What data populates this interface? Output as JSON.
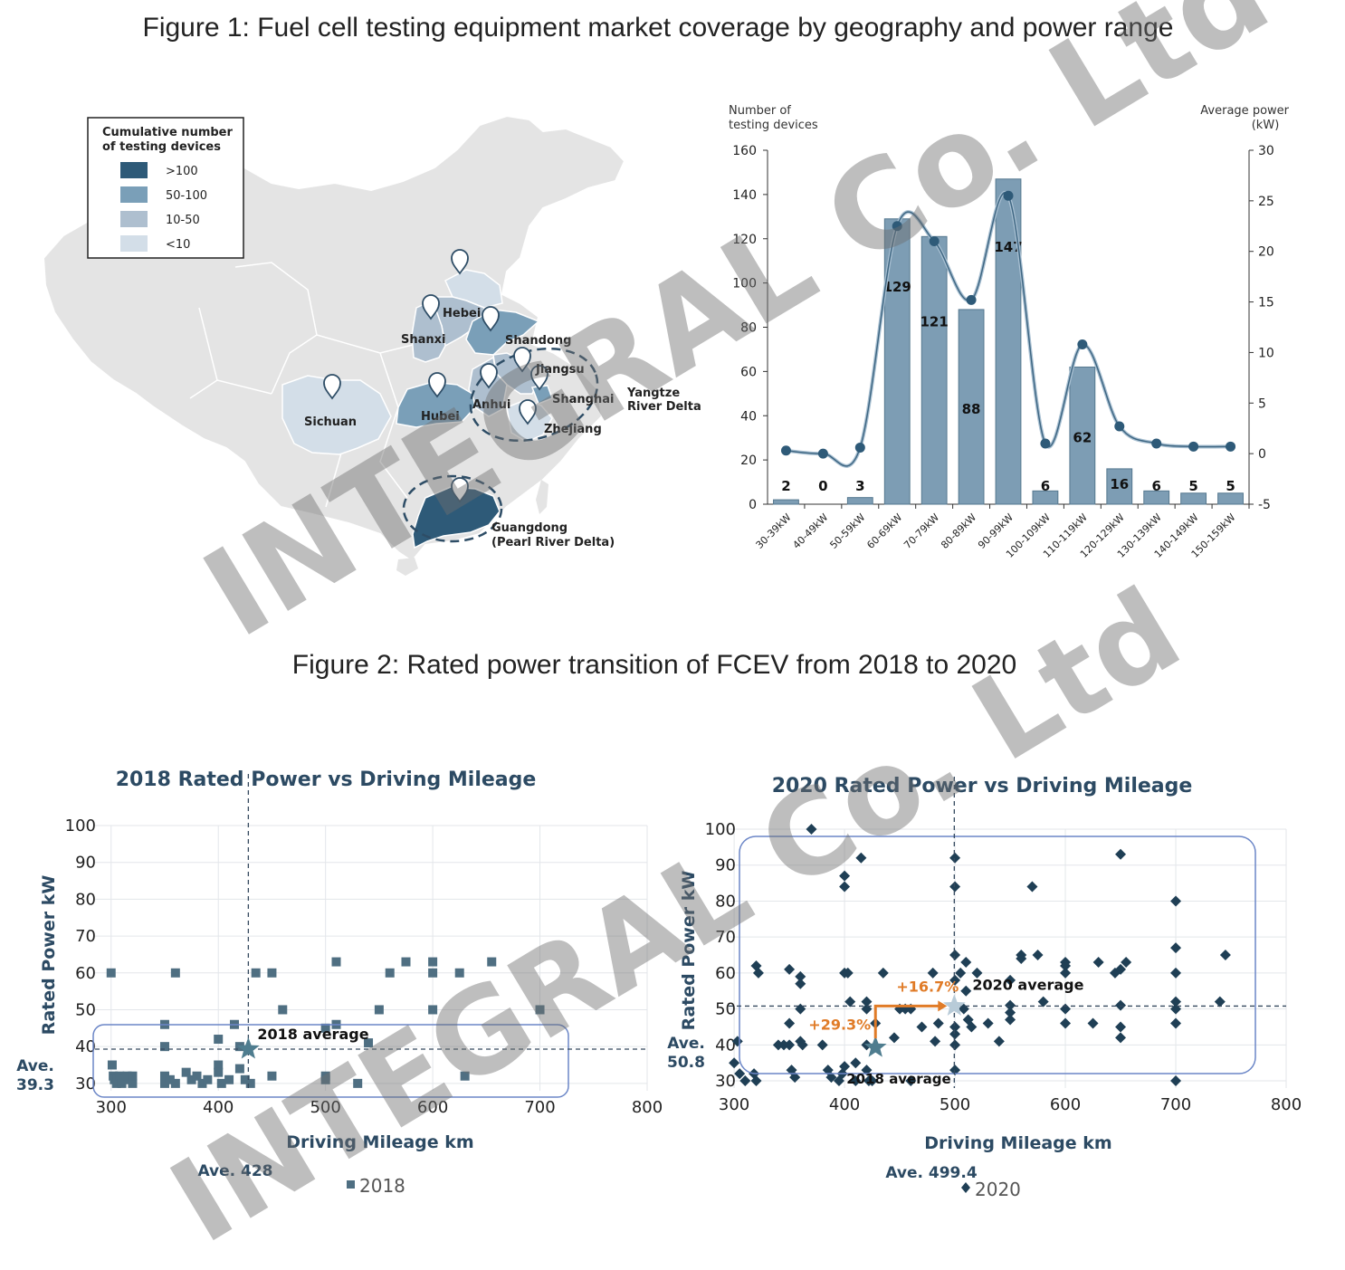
{
  "figure1": {
    "title": "Figure 1: Fuel cell testing equipment market coverage by geography and power range",
    "map": {
      "legend_title_line1": "Cumulative number",
      "legend_title_line2": "of testing devices",
      "legend": [
        {
          "label": ">100",
          "color": "#2e5a78"
        },
        {
          "label": "50-100",
          "color": "#7a9fb8"
        },
        {
          "label": "10-50",
          "color": "#aebfcf"
        },
        {
          "label": "<10",
          "color": "#d3dee8"
        }
      ],
      "provinces": [
        {
          "name": "Hebei",
          "level": "10-50"
        },
        {
          "name": "Shanxi",
          "level": "10-50"
        },
        {
          "name": "Shandong",
          "level": "50-100"
        },
        {
          "name": "Jiangsu",
          "level": "10-50"
        },
        {
          "name": "Anhui",
          "level": "10-50"
        },
        {
          "name": "Shanghai",
          "level": "50-100"
        },
        {
          "name": "Zhejiang",
          "level": "<10"
        },
        {
          "name": "Hubei",
          "level": "50-100"
        },
        {
          "name": "Sichuan",
          "level": "<10"
        },
        {
          "name": "Guangdong\n(Pearl River Delta)",
          "level": ">100"
        }
      ],
      "region_labels": {
        "yangtze_line1": "Yangtze",
        "yangtze_line2": "River Delta",
        "guangdong_line1": "Guangdong",
        "guangdong_line2": "(Pearl River Delta)"
      }
    },
    "chart_data": {
      "type": "bar",
      "categories": [
        "30-39kW",
        "40-49kW",
        "50-59kW",
        "60-69kW",
        "70-79kW",
        "80-89kW",
        "90-99kW",
        "100-109kW",
        "110-119kW",
        "120-129kW",
        "130-139kW",
        "140-149kW",
        "150-159kW"
      ],
      "series": [
        {
          "axis": "left",
          "values": [
            2,
            0,
            3,
            129,
            121,
            88,
            147,
            6,
            62,
            16,
            6,
            5,
            5
          ]
        },
        {
          "axis": "right",
          "type": "line",
          "values": [
            0.3,
            0.0,
            0.6,
            22.5,
            21.0,
            15.2,
            25.5,
            1.0,
            10.8,
            2.7,
            1.0,
            0.7,
            0.7
          ]
        }
      ],
      "ylabel_line1": "Number of",
      "ylabel_line2": "testing devices",
      "y2label_line1": "Average power",
      "y2label_line2": "(kW)",
      "ylim": [
        0,
        160
      ],
      "yticks": [
        0,
        20,
        40,
        60,
        80,
        100,
        120,
        140,
        160
      ],
      "y2lim": [
        -5,
        30
      ],
      "y2ticks": [
        -5,
        0,
        5,
        10,
        15,
        20,
        25,
        30
      ],
      "bar_color": "#7d9db4",
      "line_color": "#2e5a78"
    }
  },
  "figure2": {
    "title": "Figure 2: Rated power transition of FCEV from 2018 to 2020",
    "chart_data": [
      {
        "type": "scatter",
        "title": "2018 Rated Power vs Driving Mileage",
        "xlabel": "Driving Mileage km",
        "ylabel": "Rated Power kW",
        "xlim": [
          285,
          800
        ],
        "ylim": [
          28,
          100
        ],
        "xticks": [
          300,
          400,
          500,
          600,
          700,
          800
        ],
        "yticks": [
          30,
          40,
          50,
          60,
          70,
          80,
          90,
          100
        ],
        "average": {
          "x": 428,
          "y": 39.3,
          "label": "2018 average",
          "x_label": "Ave. 428",
          "y_label_line1": "Ave.",
          "y_label_line2": "39.3"
        },
        "legend": "2018",
        "marker_color": "#4f6f82",
        "points": [
          [
            300,
            60
          ],
          [
            301,
            35
          ],
          [
            302,
            32
          ],
          [
            303,
            31
          ],
          [
            305,
            30
          ],
          [
            306,
            31
          ],
          [
            308,
            32
          ],
          [
            310,
            30
          ],
          [
            312,
            31
          ],
          [
            315,
            32
          ],
          [
            320,
            30
          ],
          [
            320,
            32
          ],
          [
            350,
            46
          ],
          [
            350,
            40
          ],
          [
            350,
            32
          ],
          [
            350,
            30
          ],
          [
            355,
            31
          ],
          [
            360,
            60
          ],
          [
            360,
            30
          ],
          [
            370,
            33
          ],
          [
            375,
            31
          ],
          [
            380,
            32
          ],
          [
            385,
            30
          ],
          [
            390,
            31
          ],
          [
            400,
            42
          ],
          [
            400,
            35
          ],
          [
            400,
            33
          ],
          [
            403,
            30
          ],
          [
            410,
            31
          ],
          [
            415,
            46
          ],
          [
            420,
            40
          ],
          [
            420,
            34
          ],
          [
            425,
            31
          ],
          [
            430,
            30
          ],
          [
            435,
            60
          ],
          [
            450,
            60
          ],
          [
            450,
            32
          ],
          [
            460,
            50
          ],
          [
            500,
            45
          ],
          [
            500,
            32
          ],
          [
            500,
            31
          ],
          [
            510,
            63
          ],
          [
            510,
            46
          ],
          [
            530,
            30
          ],
          [
            540,
            41
          ],
          [
            550,
            50
          ],
          [
            560,
            60
          ],
          [
            575,
            63
          ],
          [
            600,
            63
          ],
          [
            600,
            60
          ],
          [
            600,
            50
          ],
          [
            625,
            60
          ],
          [
            630,
            32
          ],
          [
            655,
            63
          ],
          [
            700,
            50
          ]
        ]
      },
      {
        "type": "scatter",
        "title": "2020 Rated Power vs Driving Mileage",
        "xlabel": "Driving Mileage km",
        "ylabel": "Rated Power kW",
        "xlim": [
          295,
          800
        ],
        "ylim": [
          28,
          100
        ],
        "xticks": [
          300,
          400,
          500,
          600,
          700,
          800
        ],
        "yticks": [
          30,
          40,
          50,
          60,
          70,
          80,
          90,
          100
        ],
        "average": {
          "x": 499.4,
          "y": 50.8,
          "label": "2020 average",
          "x_label": "Ave. 499.4",
          "y_label_line1": "Ave.",
          "y_label_line2": "50.8"
        },
        "previous_average": {
          "x": 428,
          "y": 39.3,
          "label": "2018 average"
        },
        "annotations": [
          {
            "text": "+16.7%"
          },
          {
            "text": "+29.3%"
          }
        ],
        "legend": "2020",
        "marker_color": "#1f3f55",
        "points": [
          [
            300,
            35
          ],
          [
            303,
            41
          ],
          [
            305,
            32
          ],
          [
            310,
            30
          ],
          [
            318,
            32
          ],
          [
            320,
            30
          ],
          [
            320,
            62
          ],
          [
            322,
            60
          ],
          [
            340,
            40
          ],
          [
            345,
            40
          ],
          [
            350,
            61
          ],
          [
            350,
            46
          ],
          [
            350,
            40
          ],
          [
            352,
            33
          ],
          [
            355,
            31
          ],
          [
            360,
            59
          ],
          [
            360,
            57
          ],
          [
            360,
            50
          ],
          [
            360,
            41
          ],
          [
            362,
            40
          ],
          [
            370,
            100
          ],
          [
            380,
            40
          ],
          [
            385,
            33
          ],
          [
            388,
            31
          ],
          [
            395,
            30
          ],
          [
            398,
            32
          ],
          [
            400,
            87
          ],
          [
            400,
            84
          ],
          [
            400,
            60
          ],
          [
            400,
            34
          ],
          [
            403,
            60
          ],
          [
            405,
            52
          ],
          [
            410,
            35
          ],
          [
            410,
            30
          ],
          [
            415,
            92
          ],
          [
            420,
            52
          ],
          [
            420,
            50
          ],
          [
            420,
            40
          ],
          [
            420,
            33
          ],
          [
            422,
            30
          ],
          [
            425,
            30
          ],
          [
            428,
            46
          ],
          [
            435,
            60
          ],
          [
            445,
            42
          ],
          [
            450,
            50
          ],
          [
            455,
            50
          ],
          [
            460,
            50
          ],
          [
            460,
            30
          ],
          [
            470,
            45
          ],
          [
            480,
            60
          ],
          [
            482,
            41
          ],
          [
            485,
            46
          ],
          [
            500,
            92
          ],
          [
            500,
            84
          ],
          [
            500,
            65
          ],
          [
            500,
            58
          ],
          [
            500,
            45
          ],
          [
            500,
            43
          ],
          [
            500,
            40
          ],
          [
            500,
            33
          ],
          [
            505,
            60
          ],
          [
            508,
            50
          ],
          [
            510,
            63
          ],
          [
            510,
            55
          ],
          [
            512,
            47
          ],
          [
            515,
            45
          ],
          [
            520,
            60
          ],
          [
            530,
            46
          ],
          [
            540,
            41
          ],
          [
            550,
            58
          ],
          [
            550,
            51
          ],
          [
            550,
            49
          ],
          [
            550,
            47
          ],
          [
            560,
            65
          ],
          [
            560,
            64
          ],
          [
            570,
            84
          ],
          [
            575,
            65
          ],
          [
            580,
            52
          ],
          [
            600,
            63
          ],
          [
            600,
            62
          ],
          [
            600,
            60
          ],
          [
            600,
            50
          ],
          [
            600,
            46
          ],
          [
            625,
            46
          ],
          [
            630,
            63
          ],
          [
            645,
            60
          ],
          [
            650,
            93
          ],
          [
            650,
            61
          ],
          [
            650,
            51
          ],
          [
            650,
            45
          ],
          [
            650,
            42
          ],
          [
            655,
            63
          ],
          [
            700,
            80
          ],
          [
            700,
            67
          ],
          [
            700,
            60
          ],
          [
            700,
            52
          ],
          [
            700,
            50
          ],
          [
            700,
            46
          ],
          [
            700,
            30
          ],
          [
            740,
            52
          ],
          [
            745,
            65
          ]
        ]
      }
    ]
  },
  "watermarks": {
    "text": "INTEGRAL Co. Ltd"
  }
}
